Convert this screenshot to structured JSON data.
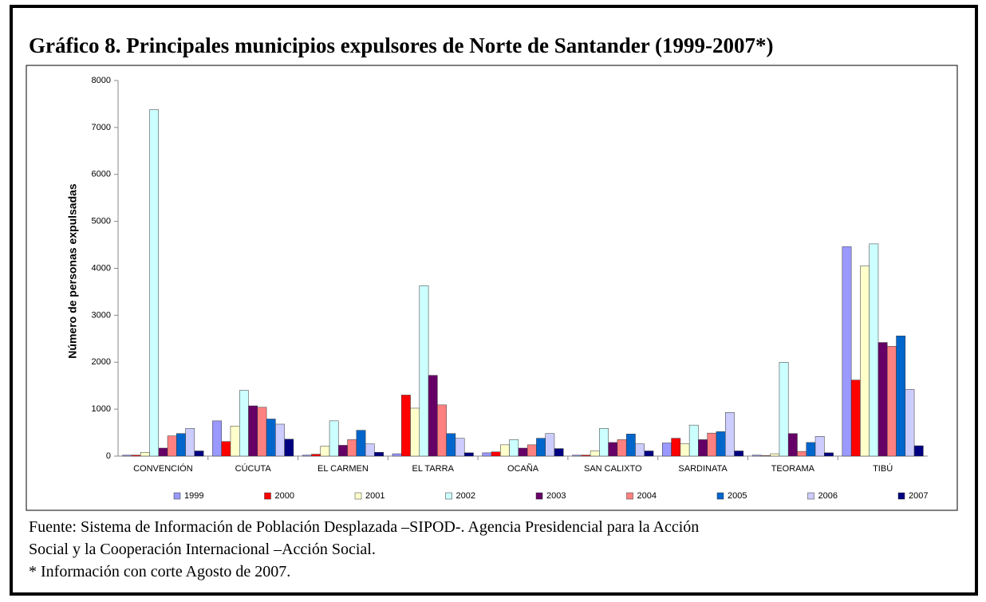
{
  "chart_data": {
    "type": "bar",
    "title": "Gráfico 8. Principales municipios expulsores de Norte de Santander (1999-2007*)",
    "y_label": "Número de personas expulsadas",
    "categories": [
      "CONVENCIÓN",
      "CÚCUTA",
      "EL CARMEN",
      "EL TARRA",
      "OCAÑA",
      "SAN CALIXTO",
      "SARDINATA",
      "TEORAMA",
      "TIBÚ"
    ],
    "series": [
      {
        "name": "1999",
        "color": "#9999ff",
        "values": [
          20,
          750,
          20,
          50,
          70,
          20,
          280,
          20,
          4460
        ]
      },
      {
        "name": "2000",
        "color": "#ff0000",
        "values": [
          20,
          310,
          40,
          1300,
          90,
          20,
          380,
          10,
          1620
        ]
      },
      {
        "name": "2001",
        "color": "#ffffcc",
        "values": [
          80,
          640,
          210,
          1020,
          240,
          110,
          260,
          50,
          4050
        ]
      },
      {
        "name": "2002",
        "color": "#ccffff",
        "values": [
          7380,
          1400,
          750,
          3630,
          350,
          590,
          660,
          2000,
          4520
        ]
      },
      {
        "name": "2003",
        "color": "#660066",
        "values": [
          170,
          1070,
          230,
          1720,
          170,
          290,
          350,
          480,
          2420
        ]
      },
      {
        "name": "2004",
        "color": "#ff8080",
        "values": [
          430,
          1040,
          350,
          1090,
          240,
          350,
          490,
          100,
          2340
        ]
      },
      {
        "name": "2005",
        "color": "#0066cc",
        "values": [
          480,
          790,
          550,
          480,
          380,
          470,
          520,
          290,
          2560
        ]
      },
      {
        "name": "2006",
        "color": "#ccccff",
        "values": [
          590,
          680,
          260,
          380,
          480,
          260,
          930,
          420,
          1420
        ]
      },
      {
        "name": "2007",
        "color": "#000080",
        "values": [
          110,
          360,
          80,
          70,
          160,
          110,
          110,
          70,
          220
        ]
      }
    ],
    "ylim": [
      0,
      8000
    ],
    "yticks": [
      0,
      1000,
      2000,
      3000,
      4000,
      5000,
      6000,
      7000,
      8000
    ],
    "grid": false,
    "legend": "bottom"
  },
  "footer": [
    "Fuente: Sistema de Información de Población Desplazada –SIPOD-. Agencia Presidencial para la Acción",
    "Social y la Cooperación Internacional –Acción Social.",
    "* Información con corte Agosto de 2007."
  ]
}
